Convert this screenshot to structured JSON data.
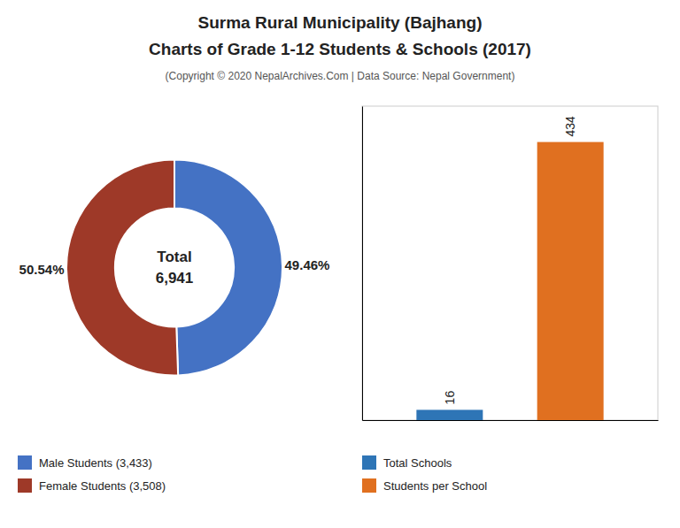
{
  "chart_data": [
    {
      "type": "donut",
      "title": [
        "Surma Rural Municipality (Bajhang)",
        "Charts of Grade 1-12 Students & Schools (2017)"
      ],
      "subtitle": "(Copyright © 2020 NepalArchives.Com | Data Source: Nepal Government)",
      "categories": [
        "Male Students (3,433)",
        "Female Students (3,508)"
      ],
      "values": [
        49.46,
        50.54
      ],
      "value_labels": [
        "49.46%",
        "50.54%"
      ],
      "data_labels": true,
      "colors": [
        "#4472c4",
        "#9e3928"
      ],
      "annotations": [
        "Total",
        "6,941"
      ],
      "legend": "bottom"
    },
    {
      "type": "bar",
      "categories": [
        "Total Schools",
        "Students per School"
      ],
      "values": [
        16,
        434
      ],
      "colors": [
        "#2e75b6",
        "#e07020"
      ],
      "ylim": [
        0,
        490
      ],
      "data_labels": true,
      "tick_labels": false,
      "legend": "bottom"
    }
  ]
}
